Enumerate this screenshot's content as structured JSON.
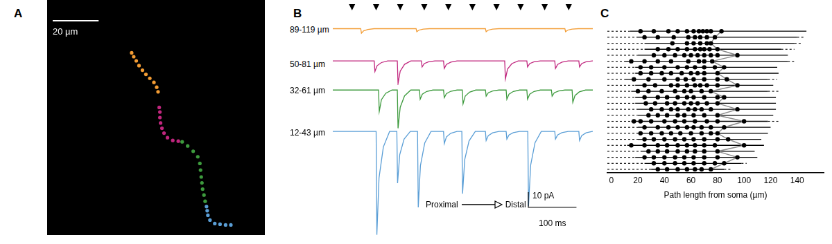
{
  "chart_data": [
    {
      "panel": "A",
      "type": "scatter",
      "tick_labels": false,
      "marker": "circle",
      "xlim": [
        0,
        92.4
      ],
      "ylim": [
        0,
        100
      ],
      "scale_bar": {
        "label": "20 µm",
        "value": 20
      },
      "series": [
        {
          "color": "#f39c33",
          "x": [
            47.1,
            46.5,
            45.3,
            43.5,
            41.8,
            40.3,
            38.8,
            37.6,
            36.5,
            35.6
          ],
          "values": [
            61.2,
            63.2,
            65.3,
            67.1,
            68.8,
            70.6,
            72.6,
            74.7,
            76.5,
            78.2
          ]
        },
        {
          "color": "#c0267e",
          "x": [
            55.9,
            53.5,
            51.2,
            49.7,
            48.8,
            48.2,
            47.9,
            47.9,
            47.6
          ],
          "values": [
            39.7,
            40.0,
            41.2,
            43.2,
            45.3,
            47.6,
            50.0,
            52.4,
            54.4
          ]
        },
        {
          "color": "#3d9a3d",
          "x": [
            67.6,
            67.1,
            66.5,
            66.2,
            65.9,
            65.6,
            65.3,
            64.4,
            62.4,
            60.0,
            57.6
          ],
          "values": [
            13.5,
            16.2,
            18.8,
            21.5,
            24.1,
            27.1,
            30.0,
            32.9,
            35.3,
            37.6,
            39.4
          ]
        },
        {
          "color": "#5a9ed6",
          "x": [
            78.8,
            76.5,
            74.1,
            71.8,
            69.7,
            68.8,
            68.5,
            68.2
          ],
          "values": [
            3.2,
            3.2,
            3.5,
            3.8,
            5.3,
            7.4,
            9.4,
            11.2
          ]
        }
      ]
    },
    {
      "panel": "B",
      "type": "line",
      "tick_labels": false,
      "xlim": [
        0,
        540
      ],
      "stimuli": [
        40,
        90,
        140,
        190,
        240,
        290,
        340,
        390,
        440,
        490
      ],
      "scale_bars": [
        {
          "label": "10 pA",
          "value": 10
        },
        {
          "label": "100 ms",
          "value": 100
        }
      ],
      "annotations": [
        "Proximal",
        "Distal"
      ],
      "series": [
        {
          "name": "89-119 µm",
          "color": "#f39c33",
          "ylim": [
            -8,
            19
          ],
          "x": [
            0,
            58,
            59.5,
            64,
            73,
            86,
            173,
            174.5,
            179,
            188,
            201,
            317,
            318.5,
            323,
            332,
            345,
            482,
            483.5,
            488,
            497,
            510,
            540
          ],
          "values": [
            0,
            0,
            -3,
            -1.4,
            -0.5,
            0,
            0,
            -2,
            -0.9,
            -0.3,
            0,
            0,
            -2,
            -0.9,
            -0.3,
            0,
            0,
            -2,
            -0.9,
            -0.3,
            0,
            0
          ]
        },
        {
          "name": "50-81 µm",
          "color": "#c0267e",
          "ylim": [
            -16,
            6
          ],
          "x": [
            0,
            86,
            87.5,
            92,
            101,
            114,
            134,
            135.5,
            140,
            149,
            162,
            184,
            185.5,
            190,
            199,
            212,
            230,
            231.5,
            236,
            245,
            258,
            357,
            358.5,
            363,
            372,
            385,
            403,
            404.5,
            409,
            418,
            431,
            461,
            462.5,
            467,
            476,
            489,
            511,
            512.5,
            517,
            526,
            539,
            540
          ],
          "values": [
            0,
            0,
            -7,
            -3.2,
            -1.1,
            0,
            0,
            -15,
            -6.8,
            -2.3,
            0,
            0,
            -4,
            -1.8,
            -0.6,
            0,
            0,
            -5,
            -2.3,
            -0.8,
            0,
            0,
            -12,
            -5.4,
            -1.8,
            0,
            0,
            -4,
            -1.8,
            -0.6,
            0,
            0,
            -5,
            -2.3,
            -0.8,
            0,
            0,
            -4,
            -1.8,
            -0.6,
            0,
            0
          ]
        },
        {
          "name": "32-61 µm",
          "color": "#3d9a3d",
          "ylim": [
            -27,
            6
          ],
          "x": [
            0,
            95,
            96.5,
            101,
            110,
            123,
            134,
            135.5,
            140,
            149,
            162,
            180,
            181.5,
            186,
            195,
            208,
            230,
            231.5,
            236,
            245,
            258,
            269,
            270.5,
            275,
            284,
            297,
            317,
            318.5,
            323,
            332,
            345,
            360,
            361.5,
            366,
            375,
            388,
            403,
            404.5,
            409,
            418,
            431,
            454,
            455.5,
            460,
            469,
            482,
            497,
            498.5,
            503,
            512,
            525,
            540
          ],
          "values": [
            0,
            0,
            -14,
            -6.3,
            -2.1,
            0,
            0,
            -25,
            -11.3,
            -3.8,
            0,
            0,
            -6,
            -2.7,
            -0.9,
            0,
            0,
            -5,
            -2.3,
            -0.8,
            0,
            0,
            -9,
            -4,
            -1.4,
            0,
            0,
            -4,
            -1.8,
            -0.6,
            0,
            0,
            -6,
            -2.7,
            -0.9,
            0,
            0,
            -6,
            -2.7,
            -0.9,
            0,
            0,
            -4,
            -1.8,
            -0.6,
            0,
            0,
            -8,
            -3.6,
            -1.2,
            0,
            0
          ]
        },
        {
          "name": "12-43 µm",
          "color": "#5a9ed6",
          "ylim": [
            -70,
            6
          ],
          "x": [
            0,
            90,
            91.5,
            96,
            105,
            118,
            133,
            134.5,
            139,
            148,
            161,
            176,
            177.5,
            182,
            191,
            204,
            230,
            231.5,
            236,
            245,
            258,
            268,
            269.5,
            274,
            283,
            296,
            317,
            318.5,
            323,
            332,
            345,
            360,
            361.5,
            366,
            375,
            388,
            405,
            406.5,
            411,
            420,
            433,
            461,
            462.5,
            467,
            476,
            489,
            511,
            512.5,
            517,
            526,
            539,
            540
          ],
          "values": [
            0,
            0,
            -68,
            -30.6,
            -10.2,
            0,
            0,
            -34,
            -15.3,
            -5.1,
            0,
            0,
            -50,
            -22.5,
            -7.5,
            0,
            0,
            -8,
            -3.6,
            -1.2,
            0,
            0,
            -41,
            -18.5,
            -6.2,
            0,
            0,
            -6,
            -2.7,
            -0.9,
            0,
            0,
            -5,
            -2.3,
            -0.8,
            0,
            0,
            -49,
            -22,
            -7.4,
            0,
            0,
            -5,
            -2.3,
            -0.8,
            0,
            0,
            -6,
            -2.7,
            -0.9,
            0,
            0
          ]
        }
      ]
    },
    {
      "panel": "C",
      "type": "scatter",
      "tick_labels": "x",
      "grid": false,
      "x_label": "Path length from soma (µm)",
      "xlim": [
        -3,
        160
      ],
      "xticks": [
        0,
        20,
        40,
        60,
        80,
        100,
        120,
        140
      ],
      "color": "#000000",
      "rows": [
        {
          "dash_start": -3,
          "start": 14,
          "end": 147,
          "dots": [
            22,
            32,
            43,
            50,
            57,
            62,
            66,
            69,
            72,
            75,
            83
          ]
        },
        {
          "dash_start": -3,
          "start": 20,
          "end": 140,
          "dash_end": 145,
          "dots": [
            25,
            35,
            47,
            58,
            63,
            67,
            72,
            78
          ]
        },
        {
          "dash_start": -3,
          "start": 25,
          "end": 138,
          "dash_end": 143,
          "dots": [
            46,
            57,
            62,
            67,
            72,
            75
          ]
        },
        {
          "dash_start": -3,
          "start": 25,
          "end": 128,
          "dash_end": 138,
          "dots": [
            35,
            43,
            50,
            57,
            63,
            67,
            70,
            74,
            80
          ]
        },
        {
          "dash_start": -3,
          "start": 20,
          "end": 133,
          "dots": [
            32,
            40,
            48,
            55,
            60,
            65,
            70,
            75,
            80,
            95
          ]
        },
        {
          "dash_start": -3,
          "start": 10,
          "end": 133,
          "dash_end": 139,
          "dots": [
            15,
            25,
            35,
            45,
            58,
            66,
            70,
            76
          ]
        },
        {
          "dash_start": -3,
          "start": 18,
          "end": 125,
          "dots": [
            22,
            30,
            40,
            50,
            57,
            63,
            70,
            78,
            85
          ]
        },
        {
          "dash_start": -3,
          "start": 18,
          "end": 126,
          "dots": [
            22,
            30,
            38,
            45,
            53,
            60,
            65,
            70,
            80
          ]
        },
        {
          "dash_start": -3,
          "start": 10,
          "end": 118,
          "dash_end": 125,
          "dots": [
            17,
            28,
            40,
            50,
            56,
            62,
            70,
            80,
            87
          ]
        },
        {
          "dash_start": -3,
          "start": 18,
          "end": 122,
          "dots": [
            25,
            33,
            45,
            50,
            57,
            63,
            67,
            72,
            80,
            95
          ]
        },
        {
          "dash_start": -3,
          "start": 15,
          "end": 118,
          "dash_end": 126,
          "dots": [
            20,
            28,
            38,
            48,
            55,
            60,
            68,
            75
          ]
        },
        {
          "dash_start": -3,
          "start": 18,
          "end": 124,
          "dots": [
            25,
            35,
            42,
            50,
            57,
            62,
            70,
            80,
            85
          ]
        },
        {
          "dash_start": -3,
          "start": 18,
          "end": 124,
          "dots": [
            26,
            33,
            42,
            48,
            55,
            60,
            65,
            72,
            80
          ]
        },
        {
          "dash_start": -3,
          "start": 20,
          "end": 124,
          "dots": [
            30,
            38,
            45,
            50,
            58,
            63,
            68,
            75,
            95
          ]
        },
        {
          "dash_start": -3,
          "start": 20,
          "end": 122,
          "dots": [
            28,
            35,
            42,
            50,
            55,
            62,
            70,
            80
          ]
        },
        {
          "dash_start": -3,
          "start": 15,
          "end": 118,
          "dash_end": 126,
          "dots": [
            17,
            22,
            30,
            40,
            48,
            55,
            63,
            72,
            80,
            100
          ]
        },
        {
          "dash_start": -3,
          "start": 20,
          "end": 120,
          "dots": [
            25,
            35,
            43,
            50,
            57,
            62,
            68,
            75,
            85
          ]
        },
        {
          "dash_start": -3,
          "start": 20,
          "end": 118,
          "dots": [
            22,
            30,
            38,
            45,
            52,
            60,
            68,
            75,
            80
          ]
        },
        {
          "dash_start": -3,
          "start": 20,
          "end": 113,
          "dots": [
            25,
            32,
            40,
            48,
            55,
            62,
            70,
            80,
            88
          ]
        },
        {
          "dash_start": -3,
          "start": 12,
          "end": 115,
          "dots": [
            15,
            25,
            35,
            42,
            50,
            57,
            63,
            70,
            78,
            100
          ]
        },
        {
          "dash_start": -3,
          "start": 22,
          "end": 108,
          "dots": [
            28,
            35,
            42,
            50,
            57,
            63,
            70,
            80
          ]
        },
        {
          "dash_start": -3,
          "start": 18,
          "end": 110,
          "dots": [
            25,
            32,
            40,
            48,
            55,
            62,
            70,
            80,
            95
          ]
        },
        {
          "dash_start": -3,
          "start": 25,
          "end": 98,
          "dash_end": 102,
          "dots": [
            32,
            40,
            48,
            55,
            62,
            70,
            78,
            85
          ]
        },
        {
          "dash_start": -3,
          "start": 30,
          "end": 85,
          "dash_end": 90,
          "dots": [
            35,
            42,
            50,
            57,
            63,
            68,
            75
          ]
        }
      ],
      "series": [
        {
          "type": "line",
          "color": "#8c8c8c",
          "values": [
            83,
            78,
            75,
            80,
            95,
            76,
            85,
            80,
            87,
            95,
            75,
            85,
            80,
            95,
            80,
            100,
            85,
            80,
            88,
            100,
            80,
            95,
            85,
            75
          ]
        }
      ]
    }
  ]
}
